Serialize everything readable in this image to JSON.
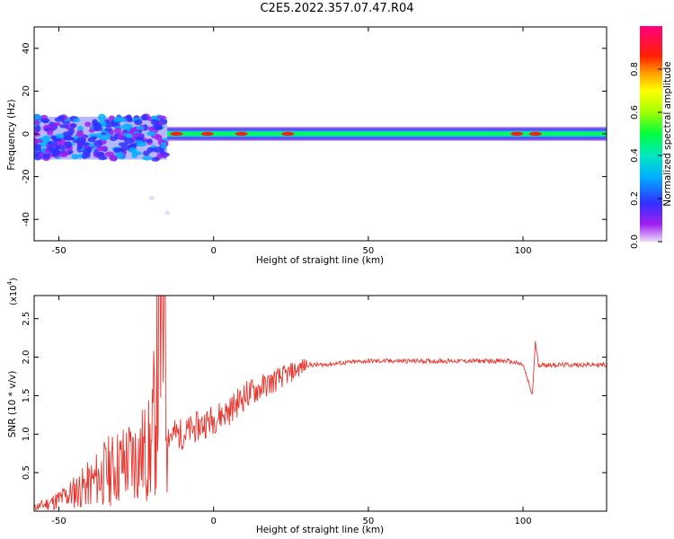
{
  "title": "C2E5.2022.357.07.47.R04",
  "chart_data": [
    {
      "type": "heatmap",
      "xlabel": "Height of straight line (km)",
      "ylabel": "Frequency (Hz)",
      "xlim": [
        -58,
        127
      ],
      "ylim": [
        -50,
        50
      ],
      "xticks": [
        -50,
        0,
        50,
        100
      ],
      "yticks": [
        -40,
        -20,
        0,
        20,
        40
      ],
      "xtick_labels": [
        "-50",
        "0",
        "50",
        "100"
      ],
      "ytick_labels": [
        "-40",
        "-20",
        "0",
        "20",
        "40"
      ],
      "colorbar": {
        "label": "Normalized spectral amplitude",
        "range": [
          0,
          1
        ],
        "ticks": [
          0.0,
          0.2,
          0.4,
          0.6,
          0.8
        ],
        "tick_labels": [
          "0.0",
          "0.2",
          "0.4",
          "0.6",
          "0.8"
        ],
        "colormap": "rainbow (purple-blue-cyan-green-yellow-orange-red-magenta)"
      },
      "grid": false,
      "features": [
        {
          "description": "main ridge",
          "x_range": [
            -15,
            127
          ],
          "frequency": 0,
          "amplitude": 0.55
        },
        {
          "description": "high-amplitude spots",
          "x": [
            -12,
            -2,
            9,
            24,
            98,
            104
          ],
          "frequency": 0,
          "amplitude": 0.9
        },
        {
          "description": "scattered band",
          "x_range": [
            -58,
            -15
          ],
          "frequency_range": [
            -12,
            8
          ],
          "amplitude": 0.25
        },
        {
          "description": "faint low tail",
          "points": [
            [
              -20,
              -30
            ],
            [
              -15,
              -37
            ]
          ],
          "amplitude": 0.05
        }
      ]
    },
    {
      "type": "line",
      "xlabel": "Height of straight line (km)",
      "ylabel": "SNR (10 * v/v)",
      "y_multiplier_label": "(x10",
      "y_multiplier_exp": "4",
      "y_multiplier_close": ")",
      "xlim": [
        -58,
        127
      ],
      "ylim": [
        0,
        28000
      ],
      "xticks": [
        -50,
        0,
        50,
        100
      ],
      "yticks": [
        5000,
        10000,
        15000,
        20000,
        25000
      ],
      "xtick_labels": [
        "-50",
        "0",
        "50",
        "100"
      ],
      "ytick_labels": [
        "0.5",
        "1.0",
        "1.5",
        "2.0",
        "2.5"
      ],
      "grid": false,
      "series": [
        {
          "color": "#e8352e",
          "x": [
            -58,
            -55,
            -50,
            -45,
            -40,
            -35,
            -30,
            -25,
            -20,
            -16,
            -15,
            -10,
            -5,
            0,
            5,
            10,
            15,
            20,
            25,
            30,
            35,
            40,
            50,
            60,
            70,
            80,
            90,
            95,
            100,
            103,
            104,
            105,
            110,
            120,
            127
          ],
          "y": [
            500,
            800,
            1500,
            2500,
            3500,
            5000,
            6000,
            7000,
            8000,
            28000,
            10000,
            10000,
            11000,
            12000,
            13000,
            15000,
            16000,
            17000,
            18000,
            19000,
            19000,
            19200,
            19500,
            19500,
            19500,
            19500,
            19500,
            19500,
            19000,
            15000,
            22000,
            19000,
            19000,
            19000,
            19000
          ]
        }
      ]
    }
  ]
}
